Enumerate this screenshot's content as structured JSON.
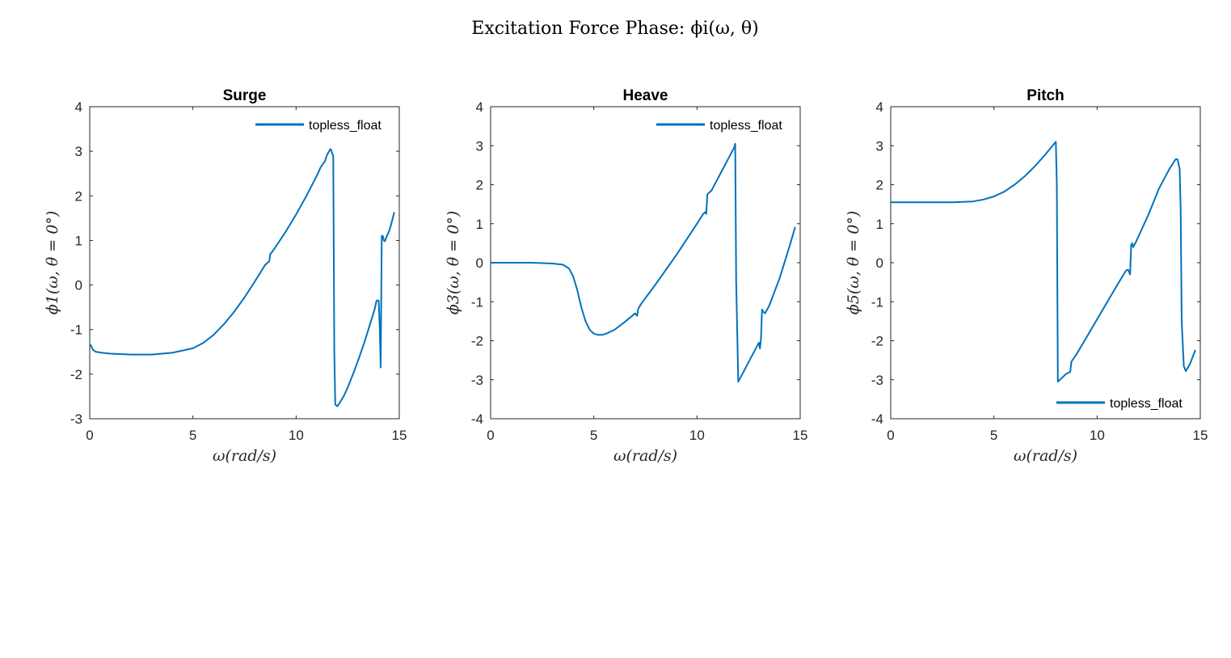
{
  "figure": {
    "suptitle": "Excitation Force Phase: ϕi(ω, θ)",
    "line_color": "#0072BD"
  },
  "chart_data": [
    {
      "type": "line",
      "title": "Surge",
      "xlabel": "ω(rad/s)",
      "ylabel": "ϕ1(ω, θ = 0°)",
      "xlim": [
        0,
        15
      ],
      "ylim": [
        -3,
        4
      ],
      "xticks": [
        0,
        5,
        10,
        15
      ],
      "yticks": [
        -3,
        -2,
        -1,
        0,
        1,
        2,
        3,
        4
      ],
      "grid": false,
      "legend": "top-right",
      "series": [
        {
          "name": "topless_float",
          "x": [
            0.05,
            0.15,
            0.3,
            0.6,
            1,
            2,
            3,
            4,
            5,
            5.5,
            6,
            6.5,
            7,
            7.5,
            8,
            8.5,
            8.7,
            8.75,
            8.8,
            9,
            9.5,
            10,
            10.5,
            11,
            11.2,
            11.4,
            11.5,
            11.6,
            11.65,
            11.7,
            11.75,
            11.8,
            11.85,
            11.9,
            12,
            12.1,
            12.3,
            12.5,
            12.8,
            13,
            13.3,
            13.6,
            13.8,
            13.9,
            14.0,
            14.05,
            14.1,
            14.15,
            14.2,
            14.25,
            14.3,
            14.4,
            14.5,
            14.6,
            14.75
          ],
          "y": [
            -1.35,
            -1.45,
            -1.5,
            -1.52,
            -1.54,
            -1.56,
            -1.56,
            -1.52,
            -1.42,
            -1.3,
            -1.12,
            -0.88,
            -0.6,
            -0.28,
            0.08,
            0.45,
            0.53,
            0.7,
            0.72,
            0.85,
            1.2,
            1.58,
            2.0,
            2.45,
            2.65,
            2.78,
            2.92,
            3.0,
            3.05,
            3.03,
            2.95,
            2.9,
            -1.5,
            -2.68,
            -2.72,
            -2.65,
            -2.5,
            -2.3,
            -1.95,
            -1.7,
            -1.3,
            -0.85,
            -0.55,
            -0.35,
            -0.35,
            -0.9,
            -1.85,
            1.1,
            1.1,
            1.0,
            0.98,
            1.1,
            1.2,
            1.35,
            1.62
          ]
        }
      ]
    },
    {
      "type": "line",
      "title": "Heave",
      "xlabel": "ω(rad/s)",
      "ylabel": "ϕ3(ω, θ = 0°)",
      "xlim": [
        0,
        15
      ],
      "ylim": [
        -4,
        4
      ],
      "xticks": [
        0,
        5,
        10,
        15
      ],
      "yticks": [
        -4,
        -3,
        -2,
        -1,
        0,
        1,
        2,
        3,
        4
      ],
      "grid": false,
      "legend": "top-right",
      "series": [
        {
          "name": "topless_float",
          "x": [
            0.05,
            1,
            2,
            3,
            3.5,
            3.8,
            4.0,
            4.2,
            4.4,
            4.6,
            4.8,
            5.0,
            5.2,
            5.4,
            5.6,
            6.0,
            6.5,
            7.0,
            7.05,
            7.1,
            7.15,
            7.3,
            8,
            9,
            10,
            10.3,
            10.4,
            10.45,
            10.5,
            10.55,
            10.7,
            11,
            11.5,
            11.8,
            11.85,
            11.9,
            12.0,
            12.3,
            12.6,
            12.9,
            13.0,
            13.05,
            13.1,
            13.15,
            13.2,
            13.3,
            13.5,
            14.0,
            14.5,
            14.75
          ],
          "y": [
            0,
            0,
            0,
            -0.02,
            -0.05,
            -0.15,
            -0.35,
            -0.7,
            -1.15,
            -1.5,
            -1.72,
            -1.82,
            -1.85,
            -1.85,
            -1.82,
            -1.72,
            -1.52,
            -1.3,
            -1.33,
            -1.36,
            -1.18,
            -1.05,
            -0.55,
            0.2,
            1.0,
            1.25,
            1.3,
            1.25,
            1.75,
            1.78,
            1.85,
            2.15,
            2.65,
            2.95,
            3.05,
            -0.5,
            -3.05,
            -2.75,
            -2.45,
            -2.15,
            -2.05,
            -2.2,
            -1.95,
            -1.2,
            -1.25,
            -1.3,
            -1.1,
            -0.4,
            0.45,
            0.9
          ]
        }
      ]
    },
    {
      "type": "line",
      "title": "Pitch",
      "xlabel": "ω(rad/s)",
      "ylabel": "ϕ5(ω, θ = 0°)",
      "xlim": [
        0,
        15
      ],
      "ylim": [
        -4,
        4
      ],
      "xticks": [
        0,
        5,
        10,
        15
      ],
      "yticks": [
        -4,
        -3,
        -2,
        -1,
        0,
        1,
        2,
        3,
        4
      ],
      "grid": false,
      "legend": "bottom-right",
      "series": [
        {
          "name": "topless_float",
          "x": [
            0.05,
            1,
            2,
            3,
            4,
            4.5,
            5,
            5.5,
            6,
            6.5,
            7,
            7.5,
            8.0,
            8.05,
            8.1,
            8.2,
            8.5,
            8.7,
            8.75,
            8.8,
            9,
            9.5,
            10,
            10.5,
            11,
            11.4,
            11.5,
            11.6,
            11.65,
            11.7,
            11.75,
            11.8,
            11.9,
            12.5,
            13,
            13.5,
            13.8,
            13.9,
            14.0,
            14.05,
            14.1,
            14.2,
            14.3,
            14.5,
            14.75
          ],
          "y": [
            1.55,
            1.55,
            1.55,
            1.55,
            1.57,
            1.62,
            1.7,
            1.82,
            2.0,
            2.22,
            2.48,
            2.78,
            3.1,
            2.0,
            -3.05,
            -3.0,
            -2.85,
            -2.8,
            -2.55,
            -2.5,
            -2.35,
            -1.9,
            -1.45,
            -1.0,
            -0.55,
            -0.2,
            -0.18,
            -0.3,
            0.45,
            0.5,
            0.4,
            0.45,
            0.55,
            1.25,
            1.9,
            2.4,
            2.65,
            2.65,
            2.4,
            1.4,
            -1.5,
            -2.65,
            -2.78,
            -2.6,
            -2.25
          ]
        }
      ]
    }
  ]
}
